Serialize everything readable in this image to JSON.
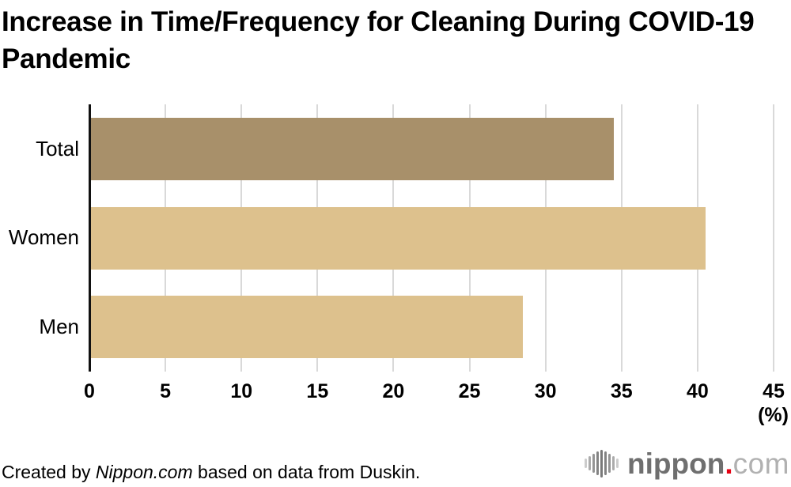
{
  "title": "Increase in Time/Frequency for Cleaning During COVID-19 Pandemic",
  "chart_data": {
    "type": "bar",
    "orientation": "horizontal",
    "title": "Increase in Time/Frequency for Cleaning During COVID-19 Pandemic",
    "categories": [
      "Total",
      "Women",
      "Men"
    ],
    "values": [
      34.4,
      40.4,
      28.4
    ],
    "unit_label": "(%)",
    "xlim": [
      0,
      45
    ],
    "xticks": [
      0,
      5,
      10,
      15,
      20,
      25,
      30,
      35,
      40,
      45
    ],
    "grid": true,
    "legend": false,
    "bar_colors": [
      "#a8906a",
      "#ddc18d",
      "#ddc18d"
    ],
    "gridline_color": "#d9d9d9",
    "axis_color": "#111111"
  },
  "footer": {
    "credit_prefix": "Created by ",
    "credit_source_italic": "Nippon.com",
    "credit_suffix": " based on data from Duskin."
  },
  "logo": {
    "brand": "nippon",
    "dot": ".",
    "tld": "com",
    "brand_color": "#6f6f6f",
    "dot_color": "#e60012",
    "tld_color": "#b1b1b1",
    "icon": "soundwave-bars-icon"
  }
}
